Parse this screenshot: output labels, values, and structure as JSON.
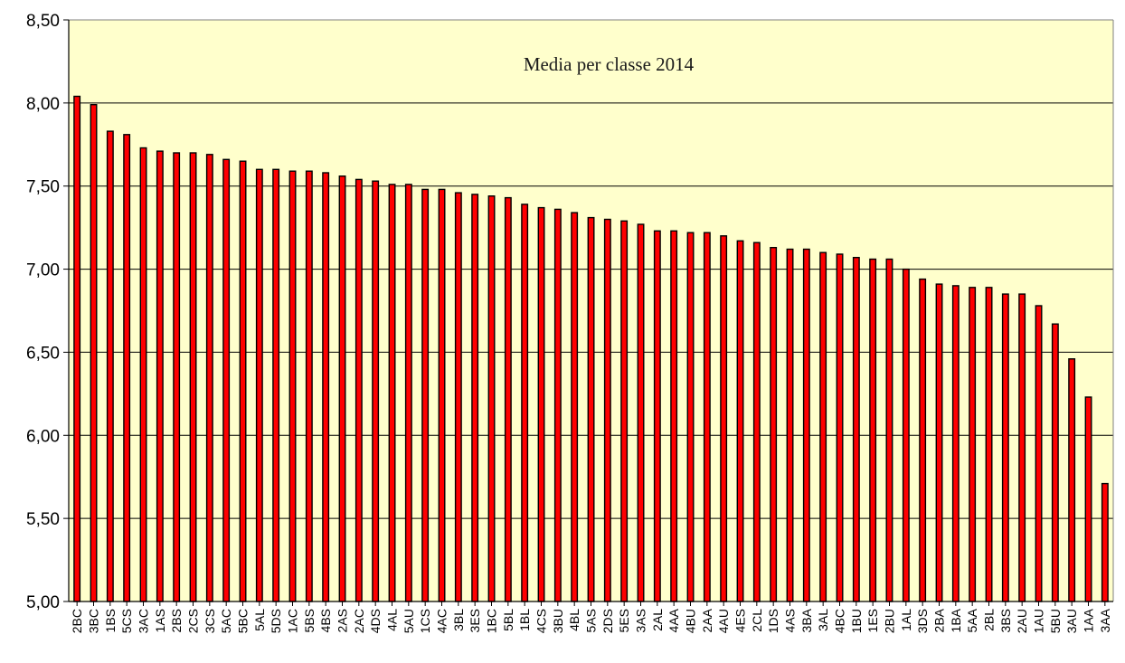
{
  "chart_data": {
    "type": "bar",
    "title": "Media per classe 2014",
    "xlabel": "",
    "ylabel": "",
    "ylim": [
      5.0,
      8.5
    ],
    "y_ticks": [
      "5,00",
      "5,50",
      "6,00",
      "6,50",
      "7,00",
      "7,50",
      "8,00",
      "8,50"
    ],
    "grid": "horizontal",
    "colors": {
      "plot_background": "#ffffcc",
      "bar_fill": "#ff0000",
      "bar_stroke": "#000000",
      "gridline": "#000000"
    },
    "categories": [
      "2BC",
      "3BC",
      "1BS",
      "5CS",
      "3AC",
      "1AS",
      "2BS",
      "2CS",
      "3CS",
      "5AC",
      "5BC",
      "5AL",
      "5DS",
      "1AC",
      "5BS",
      "4BS",
      "2AS",
      "2AC",
      "4DS",
      "4AL",
      "5AU",
      "1CS",
      "4AC",
      "3BL",
      "3ES",
      "1BC",
      "5BL",
      "1BL",
      "4CS",
      "3BU",
      "4BL",
      "5AS",
      "2DS",
      "5ES",
      "3AS",
      "2AL",
      "4AA",
      "4BU",
      "2AA",
      "4AU",
      "4ES",
      "2CL",
      "1DS",
      "4AS",
      "3BA",
      "3AL",
      "4BC",
      "1BU",
      "1ES",
      "2BU",
      "1AL",
      "3DS",
      "2BA",
      "1BA",
      "5AA",
      "2BL",
      "3BS",
      "2AU",
      "1AU",
      "5BU",
      "3AU",
      "1AA",
      "3AA"
    ],
    "values": [
      8.04,
      7.99,
      7.83,
      7.81,
      7.73,
      7.71,
      7.7,
      7.7,
      7.69,
      7.66,
      7.65,
      7.6,
      7.6,
      7.59,
      7.59,
      7.58,
      7.56,
      7.54,
      7.53,
      7.51,
      7.51,
      7.48,
      7.48,
      7.46,
      7.45,
      7.44,
      7.43,
      7.39,
      7.37,
      7.36,
      7.34,
      7.31,
      7.3,
      7.29,
      7.27,
      7.23,
      7.23,
      7.22,
      7.22,
      7.2,
      7.17,
      7.16,
      7.13,
      7.12,
      7.12,
      7.1,
      7.09,
      7.07,
      7.06,
      7.06,
      7.0,
      6.94,
      6.91,
      6.9,
      6.89,
      6.89,
      6.85,
      6.85,
      6.78,
      6.67,
      6.46,
      6.23,
      5.71
    ]
  }
}
